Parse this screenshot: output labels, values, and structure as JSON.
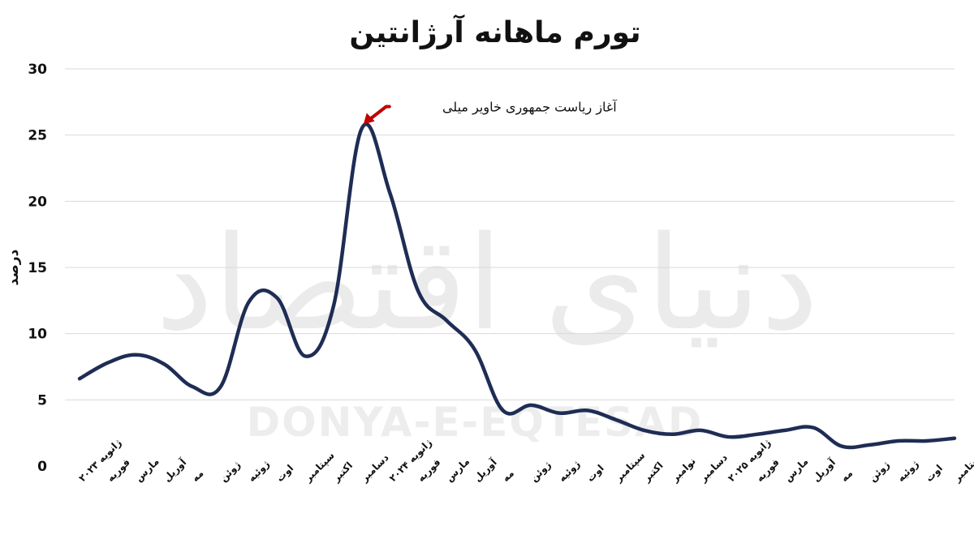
{
  "chart_data": {
    "type": "line",
    "title": "تورم ماهانه آرژانتین",
    "ylabel": "درصد",
    "xlabel": "",
    "ylim": [
      0,
      30
    ],
    "yticks": [
      0,
      5,
      10,
      15,
      20,
      25,
      30
    ],
    "ytick_labels": [
      "0",
      "5",
      "10",
      "15",
      "20",
      "25",
      "30"
    ],
    "grid": true,
    "legend": "none",
    "line_color": "#1f2d55",
    "categories": [
      "ژانویه ۲۰۲۳",
      "فوریه",
      "مارس",
      "آوریل",
      "مه",
      "ژوئن",
      "ژوئیه",
      "اوت",
      "سپتامبر",
      "اکتبر",
      "دسامبر",
      "ژانویه ۲۰۲۴",
      "فوریه",
      "مارس",
      "آوریل",
      "مه",
      "ژوئن",
      "ژوئیه",
      "اوت",
      "سپتامبر",
      "اکتبر",
      "نوامبر",
      "دسامبر",
      "ژانویه ۲۰۲۵",
      "فوریه",
      "مارس",
      "آوریل",
      "مه",
      "ژوئن",
      "ژوئیه",
      "اوت",
      "سپتامبر"
    ],
    "series": [
      {
        "values": [
          6.6,
          7.8,
          8.4,
          7.7,
          6.0,
          6.0,
          12.4,
          12.7,
          8.3,
          12.1,
          25.5,
          20.6,
          13.2,
          11.0,
          8.8,
          4.2,
          4.6,
          4.0,
          4.2,
          3.5,
          2.7,
          2.4,
          2.7,
          2.2,
          2.4,
          2.7,
          2.9,
          1.5,
          1.6,
          1.9,
          1.9,
          2.1
        ]
      }
    ],
    "annotations": [
      {
        "text": "آغاز ریاست جمهوری خاویر میلی",
        "x": "دسامبر",
        "y": 25.5,
        "color": "#c00000"
      }
    ]
  },
  "watermark": {
    "persian": "دنیای اقتصاد",
    "latin": "DONYA-E-EQTESAD"
  },
  "colors": {
    "arrow": "#c00000",
    "grid": "#d9d9d9",
    "line": "#1f2d55"
  }
}
